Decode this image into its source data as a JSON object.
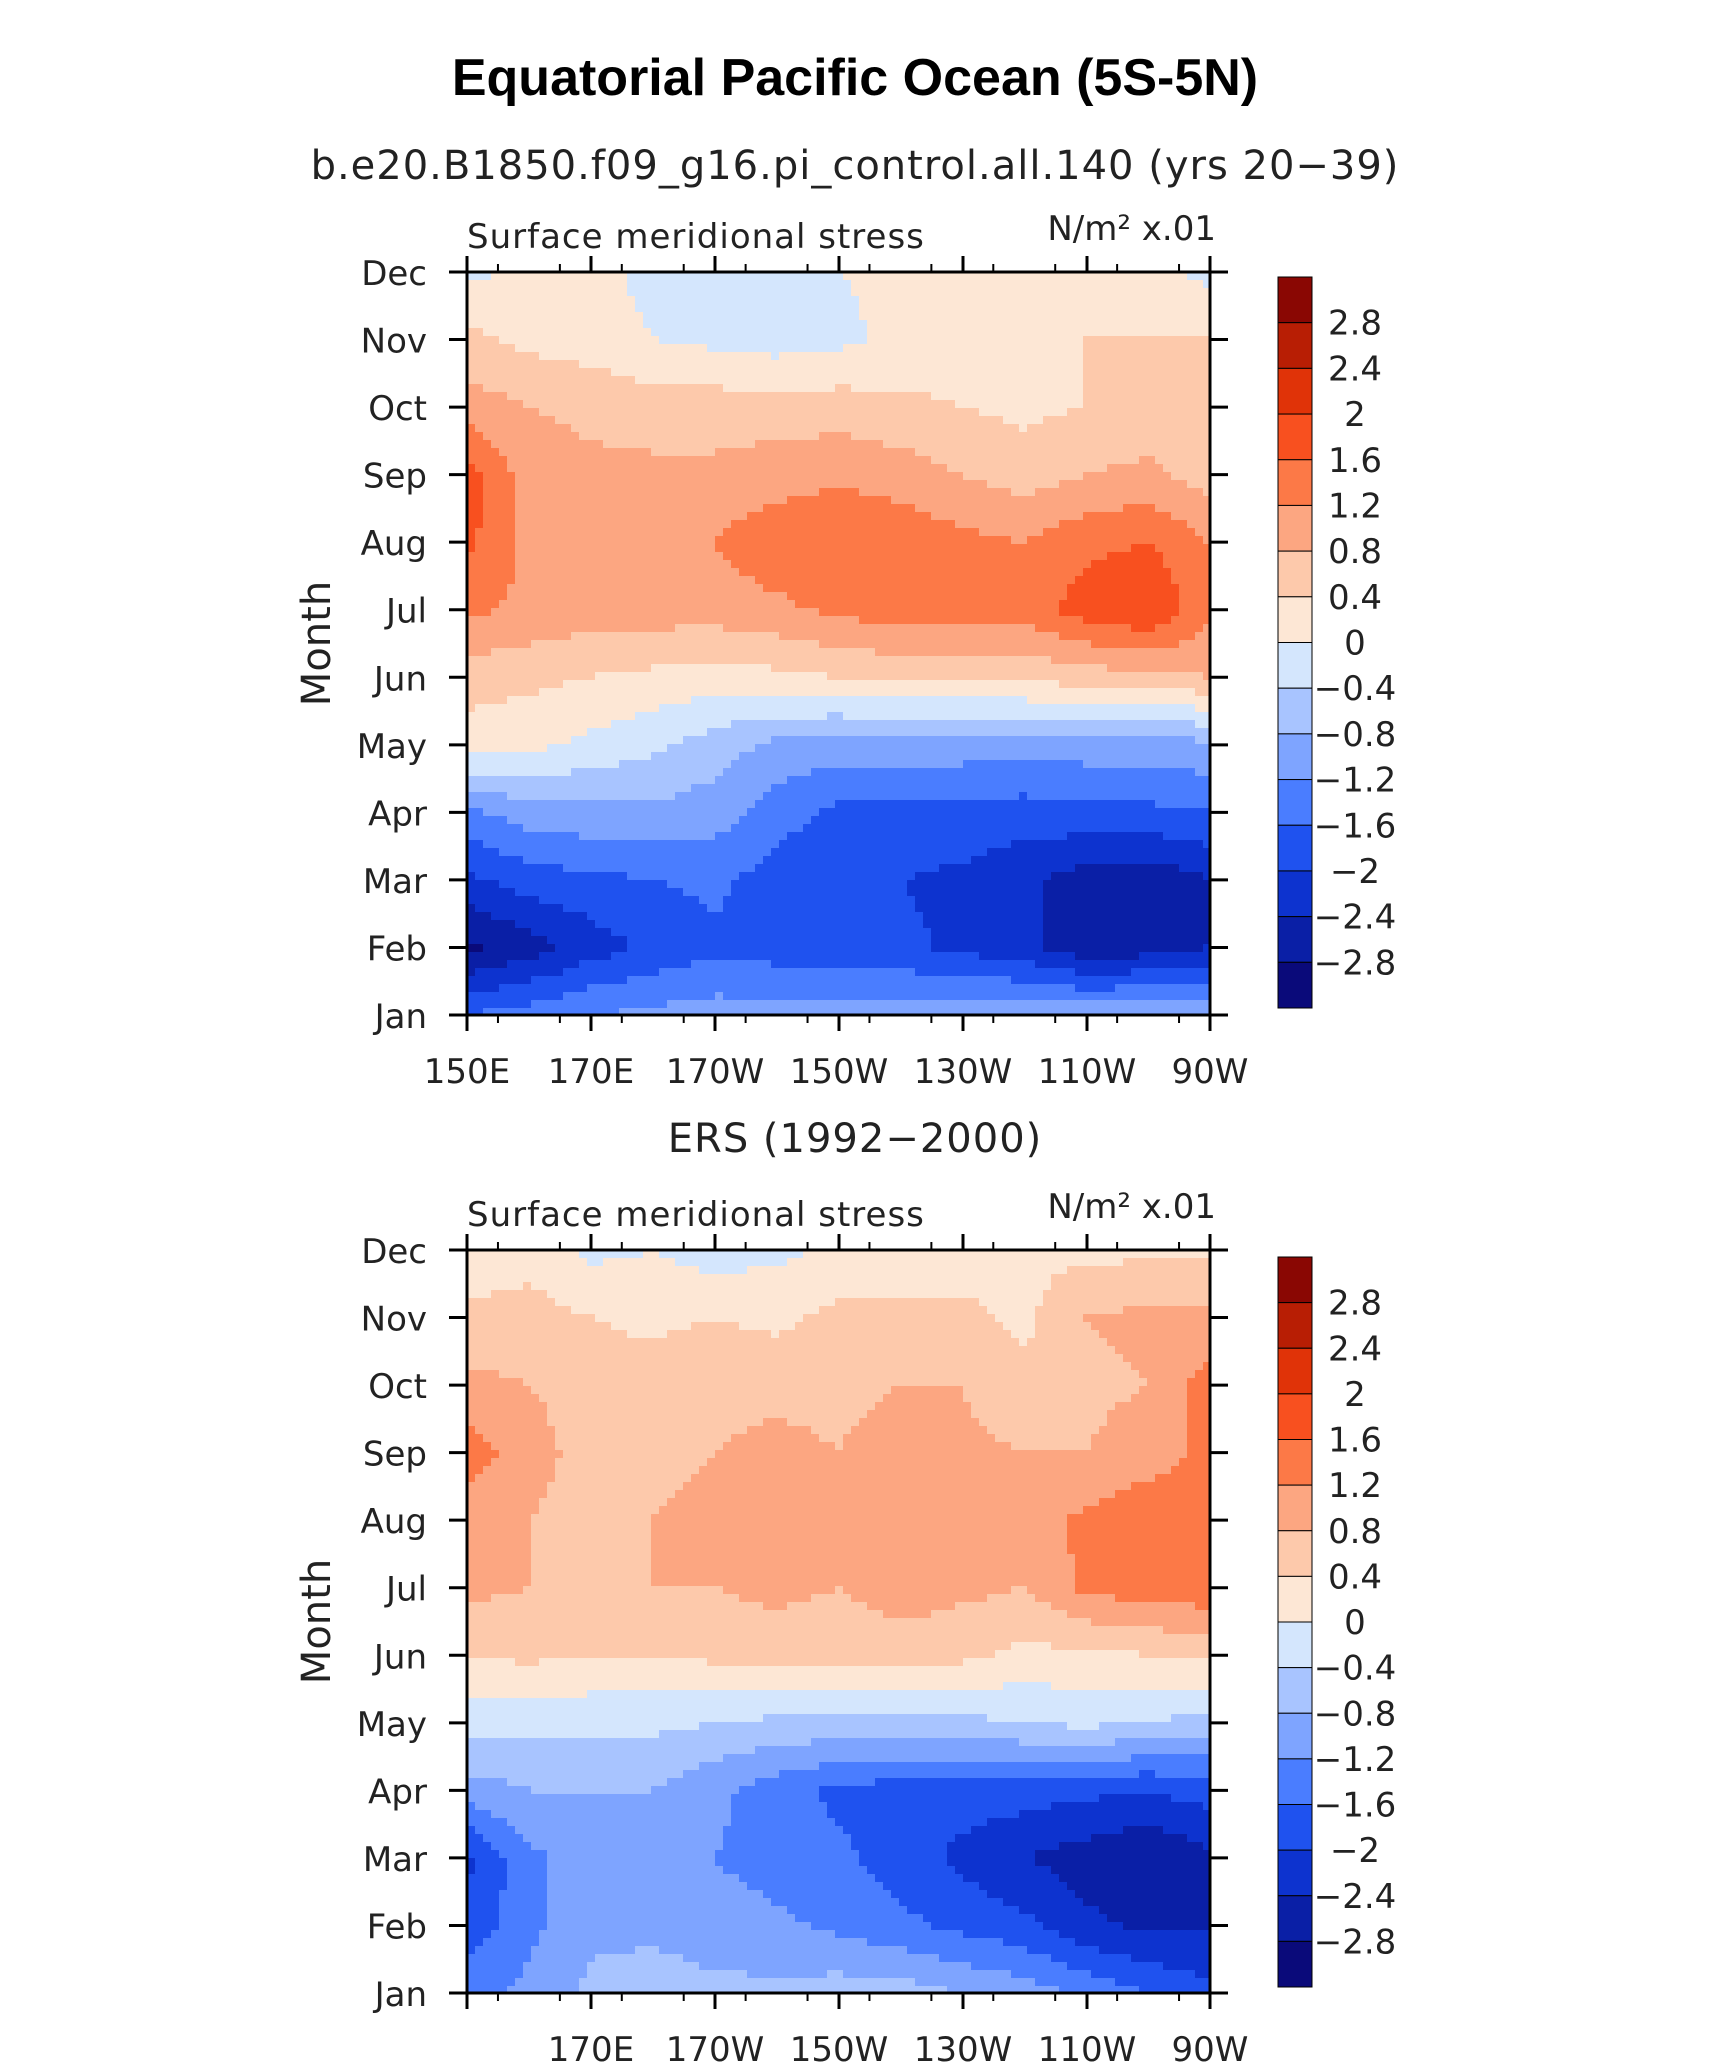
{
  "title": "Equatorial Pacific Ocean (5S-5N)",
  "colors": [
    "#0a0a7a",
    "#0a1fa6",
    "#0d33cf",
    "#1f52ef",
    "#4a7dff",
    "#7ea4ff",
    "#a8c4ff",
    "#d4e6fd",
    "#fde7d5",
    "#fdc9ab",
    "#fca681",
    "#fc7947",
    "#f8501f",
    "#e03308",
    "#b81e04",
    "#8a0703"
  ],
  "chart_data": [
    {
      "type": "heatmap",
      "subtitle": "b.e20.B1850.f09_g16.pi_control.all.140 (yrs 20−39)",
      "left_label": "Surface meridional stress",
      "right_label": "N/m² x.01",
      "ylabel": "Month",
      "xlabel": "",
      "x_tick_labels": [
        "150E",
        "170E",
        "170W",
        "150W",
        "130W",
        "110W",
        "90W"
      ],
      "y_tick_labels": [
        "Jan",
        "Feb",
        "Mar",
        "Apr",
        "May",
        "Jun",
        "Jul",
        "Aug",
        "Sep",
        "Oct",
        "Nov",
        "Dec"
      ],
      "colorbar_labels": [
        "2.8",
        "2.4",
        "2",
        "1.6",
        "1.2",
        "0.8",
        "0.4",
        "0",
        "−0.4",
        "−0.8",
        "−1.2",
        "−1.6",
        "−2",
        "−2.4",
        "−2.8"
      ],
      "levels": [
        -2.8,
        -2.4,
        -2,
        -1.6,
        -1.2,
        -0.8,
        -0.4,
        0,
        0.4,
        0.8,
        1.2,
        1.6,
        2,
        2.4,
        2.8
      ],
      "x_range": [
        150,
        270
      ],
      "y_range": [
        "Jan",
        "Dec"
      ],
      "x": [
        150,
        160,
        170,
        180,
        190,
        200,
        210,
        220,
        230,
        240,
        250,
        260,
        270
      ],
      "y": [
        "Jan",
        "Feb",
        "Mar",
        "Apr",
        "May",
        "Jun",
        "Jul",
        "Aug",
        "Sep",
        "Oct",
        "Nov",
        "Dec"
      ],
      "z": [
        [
          -1.6,
          -1.4,
          -1.2,
          -1.1,
          -1.0,
          -1.0,
          -1.0,
          -1.0,
          -0.9,
          -0.9,
          -0.9,
          -0.9,
          -0.9
        ],
        [
          -2.9,
          -2.6,
          -2.2,
          -1.9,
          -1.7,
          -1.8,
          -1.9,
          -1.9,
          -2.1,
          -2.3,
          -2.7,
          -2.6,
          -2.4
        ],
        [
          -2.1,
          -1.8,
          -1.7,
          -1.6,
          -1.5,
          -1.8,
          -2.0,
          -2.0,
          -2.1,
          -2.3,
          -2.6,
          -2.7,
          -2.4
        ],
        [
          -1.3,
          -1.0,
          -0.9,
          -0.9,
          -1.0,
          -1.4,
          -1.7,
          -1.7,
          -1.7,
          -1.8,
          -1.7,
          -1.7,
          -1.6
        ],
        [
          0.2,
          0.1,
          -0.1,
          -0.3,
          -0.6,
          -0.9,
          -1.0,
          -1.0,
          -1.0,
          -1.0,
          -1.0,
          -1.0,
          -0.9
        ],
        [
          0.6,
          0.5,
          0.4,
          0.3,
          0.2,
          0.3,
          0.4,
          0.5,
          0.5,
          0.5,
          0.6,
          0.7,
          0.8
        ],
        [
          1.3,
          1.1,
          1.0,
          1.0,
          1.0,
          1.1,
          1.3,
          1.4,
          1.4,
          1.4,
          1.8,
          2.0,
          1.3
        ],
        [
          1.7,
          1.1,
          1.0,
          1.0,
          1.2,
          1.5,
          1.6,
          1.5,
          1.3,
          1.2,
          1.5,
          1.6,
          1.2
        ],
        [
          1.8,
          1.0,
          0.9,
          0.9,
          0.9,
          1.0,
          1.1,
          1.0,
          0.8,
          0.6,
          0.8,
          0.9,
          0.6
        ],
        [
          1.0,
          0.8,
          0.7,
          0.6,
          0.6,
          0.6,
          0.6,
          0.5,
          0.4,
          0.3,
          0.4,
          0.5,
          0.4
        ],
        [
          0.5,
          0.3,
          0.2,
          0.0,
          -0.1,
          -0.2,
          -0.1,
          0.1,
          0.2,
          0.3,
          0.4,
          0.4,
          0.4
        ],
        [
          -0.1,
          0.1,
          0.1,
          -0.1,
          -0.2,
          -0.2,
          0.0,
          0.1,
          0.2,
          0.2,
          0.2,
          0.1,
          -0.1
        ]
      ]
    },
    {
      "type": "heatmap",
      "subtitle": "ERS (1992−2000)",
      "left_label": "Surface meridional stress",
      "right_label": "N/m² x.01",
      "ylabel": "Month",
      "xlabel": "",
      "x_tick_labels": [
        "170E",
        "170W",
        "150W",
        "130W",
        "110W",
        "90W"
      ],
      "y_tick_labels": [
        "Jan",
        "Feb",
        "Mar",
        "Apr",
        "May",
        "Jun",
        "Jul",
        "Aug",
        "Sep",
        "Oct",
        "Nov",
        "Dec"
      ],
      "colorbar_labels": [
        "2.8",
        "2.4",
        "2",
        "1.6",
        "1.2",
        "0.8",
        "0.4",
        "0",
        "−0.4",
        "−0.8",
        "−1.2",
        "−1.6",
        "−2",
        "−2.4",
        "−2.8"
      ],
      "levels": [
        -2.8,
        -2.4,
        -2,
        -1.6,
        -1.2,
        -0.8,
        -0.4,
        0,
        0.4,
        0.8,
        1.2,
        1.6,
        2,
        2.4,
        2.8
      ],
      "x_range": [
        150,
        270
      ],
      "y_range": [
        "Jan",
        "Dec"
      ],
      "x": [
        150,
        160,
        170,
        180,
        190,
        200,
        210,
        220,
        230,
        240,
        250,
        260,
        270
      ],
      "y": [
        "Jan",
        "Feb",
        "Mar",
        "Apr",
        "May",
        "Jun",
        "Jul",
        "Aug",
        "Sep",
        "Oct",
        "Nov",
        "Dec"
      ],
      "z": [
        [
          -1.3,
          -1.1,
          -0.7,
          -0.6,
          -0.7,
          -0.7,
          -0.6,
          -0.6,
          -0.8,
          -1.0,
          -1.3,
          -1.6,
          -1.9
        ],
        [
          -1.9,
          -1.3,
          -0.9,
          -0.9,
          -1.0,
          -1.1,
          -1.3,
          -1.5,
          -1.7,
          -1.9,
          -2.3,
          -2.5,
          -2.4
        ],
        [
          -2.1,
          -1.3,
          -1.0,
          -0.9,
          -1.2,
          -1.4,
          -1.5,
          -1.8,
          -2.1,
          -2.4,
          -2.6,
          -2.8,
          -2.5
        ],
        [
          -1.0,
          -0.8,
          -0.8,
          -0.8,
          -1.1,
          -1.4,
          -1.7,
          -1.8,
          -1.8,
          -1.8,
          -1.9,
          -2.0,
          -1.8
        ],
        [
          -0.2,
          -0.3,
          -0.3,
          -0.3,
          -0.4,
          -0.5,
          -0.5,
          -0.5,
          -0.5,
          -0.4,
          -0.3,
          -0.4,
          -0.6
        ],
        [
          0.4,
          0.5,
          0.4,
          0.4,
          0.5,
          0.6,
          0.5,
          0.6,
          0.5,
          0.3,
          0.3,
          0.4,
          0.5
        ],
        [
          0.9,
          0.8,
          0.7,
          0.8,
          0.8,
          0.9,
          0.8,
          1.0,
          0.9,
          0.8,
          1.3,
          1.4,
          1.5
        ],
        [
          1.0,
          0.8,
          0.6,
          0.8,
          0.9,
          0.9,
          1.1,
          1.0,
          1.1,
          1.0,
          1.3,
          1.5,
          1.5
        ],
        [
          1.4,
          1.0,
          0.6,
          0.7,
          0.8,
          0.9,
          0.8,
          1.0,
          0.9,
          0.8,
          0.8,
          1.0,
          1.3
        ],
        [
          0.9,
          0.8,
          0.6,
          0.6,
          0.7,
          0.7,
          0.7,
          0.8,
          0.8,
          0.5,
          0.7,
          0.8,
          1.4
        ],
        [
          0.5,
          0.6,
          0.4,
          0.3,
          0.4,
          0.3,
          0.5,
          0.5,
          0.5,
          0.3,
          0.8,
          0.9,
          0.9
        ],
        [
          0.1,
          0.2,
          -0.1,
          0.0,
          -0.2,
          -0.1,
          0.1,
          0.2,
          0.2,
          0.3,
          0.3,
          0.3,
          0.3
        ]
      ]
    }
  ]
}
